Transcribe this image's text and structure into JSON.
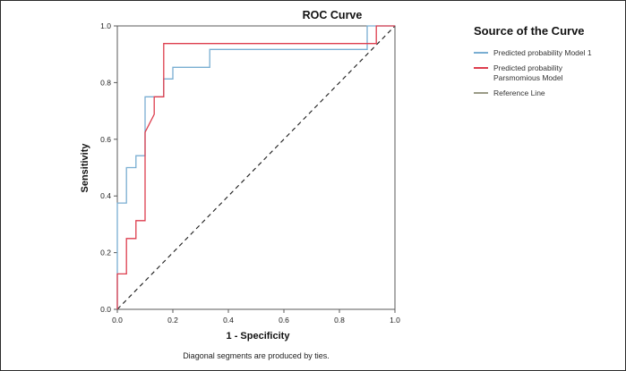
{
  "chart": {
    "title": "ROC Curve",
    "xlabel": "1 - Specificity",
    "ylabel": "Sensitivity",
    "caption": "Diagonal segments are produced by ties."
  },
  "legend": {
    "title": "Source of the Curve",
    "items": [
      {
        "label": "Predicted probability Model 1",
        "color": "#79aed2"
      },
      {
        "label": "Predicted probability\nParsmomious Model",
        "color": "#dd3d4d"
      },
      {
        "label": "Reference Line",
        "color": "#9a9b86"
      }
    ]
  },
  "chart_data": {
    "type": "line",
    "title": "ROC Curve",
    "xlabel": "1 - Specificity",
    "ylabel": "Sensitivity",
    "caption": "Diagonal segments are produced by ties.",
    "xlim": [
      0,
      1
    ],
    "ylim": [
      0,
      1
    ],
    "x_ticks": [
      0,
      0.2,
      0.4,
      0.6,
      0.8,
      1.0
    ],
    "y_ticks": [
      0,
      0.2,
      0.4,
      0.6,
      0.8,
      1.0
    ],
    "grid": false,
    "legend_position": "right",
    "series": [
      {
        "id": "model1",
        "name": "Predicted probability Model 1",
        "color": "#79aed2",
        "style": "solid",
        "points": [
          [
            0,
            0
          ],
          [
            0,
            0.375
          ],
          [
            0.033,
            0.375
          ],
          [
            0.033,
            0.5
          ],
          [
            0.067,
            0.5
          ],
          [
            0.067,
            0.542
          ],
          [
            0.1,
            0.542
          ],
          [
            0.1,
            0.75
          ],
          [
            0.167,
            0.75
          ],
          [
            0.167,
            0.813
          ],
          [
            0.2,
            0.813
          ],
          [
            0.2,
            0.854
          ],
          [
            0.333,
            0.854
          ],
          [
            0.333,
            0.917
          ],
          [
            0.9,
            0.917
          ],
          [
            0.9,
            1
          ],
          [
            1,
            1
          ]
        ]
      },
      {
        "id": "parsimonious",
        "name": "Predicted probability Parsmomious Model",
        "color": "#dd3d4d",
        "style": "solid",
        "points": [
          [
            0,
            0
          ],
          [
            0,
            0.125
          ],
          [
            0.033,
            0.125
          ],
          [
            0.033,
            0.25
          ],
          [
            0.067,
            0.25
          ],
          [
            0.067,
            0.313
          ],
          [
            0.1,
            0.313
          ],
          [
            0.1,
            0.625
          ],
          [
            0.133,
            0.688
          ],
          [
            0.133,
            0.75
          ],
          [
            0.167,
            0.75
          ],
          [
            0.167,
            0.938
          ],
          [
            0.933,
            0.938
          ],
          [
            0.933,
            1
          ],
          [
            1,
            1
          ]
        ]
      },
      {
        "id": "reference",
        "name": "Reference Line",
        "color": "#1a1a1a",
        "style": "dashed",
        "points": [
          [
            0,
            0
          ],
          [
            1,
            1
          ]
        ]
      }
    ]
  }
}
